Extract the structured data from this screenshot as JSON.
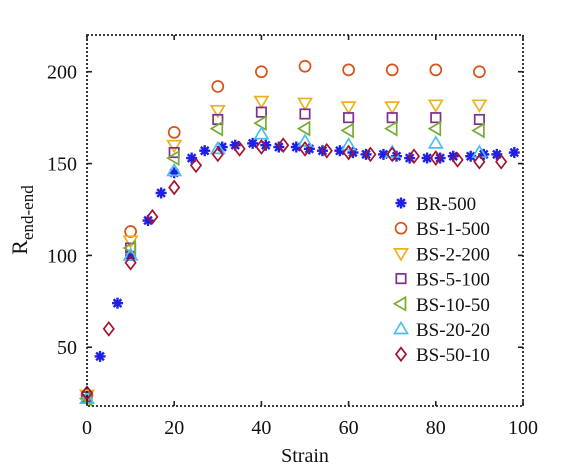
{
  "chart_data": {
    "type": "scatter",
    "title": "",
    "xlabel": "Strain",
    "ylabel_main": "R",
    "ylabel_sub": "end-end",
    "xlim": [
      0,
      100
    ],
    "ylim": [
      18,
      220
    ],
    "xticks": [
      0,
      20,
      40,
      60,
      80,
      100
    ],
    "yticks": [
      50,
      100,
      150,
      200
    ],
    "grid": false,
    "legend_position": "lower-right",
    "series": [
      {
        "name": "BR-500",
        "marker": "asterisk",
        "color": "#1f1fe6",
        "points": [
          [
            0,
            22
          ],
          [
            3,
            45
          ],
          [
            7,
            74
          ],
          [
            10,
            100
          ],
          [
            14,
            119
          ],
          [
            17,
            134
          ],
          [
            20,
            145
          ],
          [
            24,
            153
          ],
          [
            27,
            157
          ],
          [
            31,
            159
          ],
          [
            34,
            160
          ],
          [
            38,
            161
          ],
          [
            41,
            160
          ],
          [
            44,
            159
          ],
          [
            48,
            159
          ],
          [
            51,
            158
          ],
          [
            54,
            157
          ],
          [
            58,
            157
          ],
          [
            61,
            156
          ],
          [
            64,
            155
          ],
          [
            68,
            155
          ],
          [
            71,
            154
          ],
          [
            74,
            153
          ],
          [
            78,
            153
          ],
          [
            81,
            153
          ],
          [
            84,
            154
          ],
          [
            88,
            154
          ],
          [
            91,
            155
          ],
          [
            94,
            155
          ],
          [
            98,
            156
          ]
        ]
      },
      {
        "name": "BS-1-500",
        "marker": "circle",
        "color": "#d95319",
        "points": [
          [
            0,
            24
          ],
          [
            10,
            113
          ],
          [
            20,
            167
          ],
          [
            30,
            192
          ],
          [
            40,
            200
          ],
          [
            50,
            203
          ],
          [
            60,
            201
          ],
          [
            70,
            201
          ],
          [
            80,
            201
          ],
          [
            90,
            200
          ]
        ]
      },
      {
        "name": "BS-2-200",
        "marker": "triangle-down",
        "color": "#edb120",
        "points": [
          [
            0,
            24
          ],
          [
            10,
            108
          ],
          [
            20,
            160
          ],
          [
            30,
            179
          ],
          [
            40,
            184
          ],
          [
            50,
            183
          ],
          [
            60,
            181
          ],
          [
            70,
            181
          ],
          [
            80,
            182
          ],
          [
            90,
            182
          ]
        ]
      },
      {
        "name": "BS-5-100",
        "marker": "square",
        "color": "#7e2f8e",
        "points": [
          [
            0,
            23
          ],
          [
            10,
            104
          ],
          [
            20,
            156
          ],
          [
            30,
            174
          ],
          [
            40,
            178
          ],
          [
            50,
            177
          ],
          [
            60,
            175
          ],
          [
            70,
            175
          ],
          [
            80,
            175
          ],
          [
            90,
            174
          ]
        ]
      },
      {
        "name": "BS-10-50",
        "marker": "triangle-left",
        "color": "#77ac30",
        "points": [
          [
            0,
            22
          ],
          [
            10,
            104
          ],
          [
            20,
            153
          ],
          [
            30,
            169
          ],
          [
            40,
            172
          ],
          [
            50,
            169
          ],
          [
            60,
            168
          ],
          [
            70,
            169
          ],
          [
            80,
            169
          ],
          [
            90,
            168
          ]
        ]
      },
      {
        "name": "BS-20-20",
        "marker": "triangle-up",
        "color": "#4dbeee",
        "points": [
          [
            0,
            22
          ],
          [
            10,
            100
          ],
          [
            20,
            146
          ],
          [
            30,
            158
          ],
          [
            40,
            166
          ],
          [
            50,
            162
          ],
          [
            60,
            160
          ],
          [
            70,
            156
          ],
          [
            80,
            161
          ],
          [
            90,
            156
          ]
        ]
      },
      {
        "name": "BS-50-10",
        "marker": "diamond",
        "color": "#a2142f",
        "points": [
          [
            0,
            25
          ],
          [
            5,
            60
          ],
          [
            10,
            96
          ],
          [
            15,
            121
          ],
          [
            20,
            137
          ],
          [
            25,
            149
          ],
          [
            30,
            155
          ],
          [
            35,
            158
          ],
          [
            40,
            159
          ],
          [
            45,
            160
          ],
          [
            50,
            158
          ],
          [
            55,
            157
          ],
          [
            60,
            156
          ],
          [
            65,
            155
          ],
          [
            70,
            155
          ],
          [
            75,
            154
          ],
          [
            80,
            153
          ],
          [
            85,
            152
          ],
          [
            90,
            151
          ],
          [
            95,
            151
          ]
        ]
      }
    ]
  }
}
